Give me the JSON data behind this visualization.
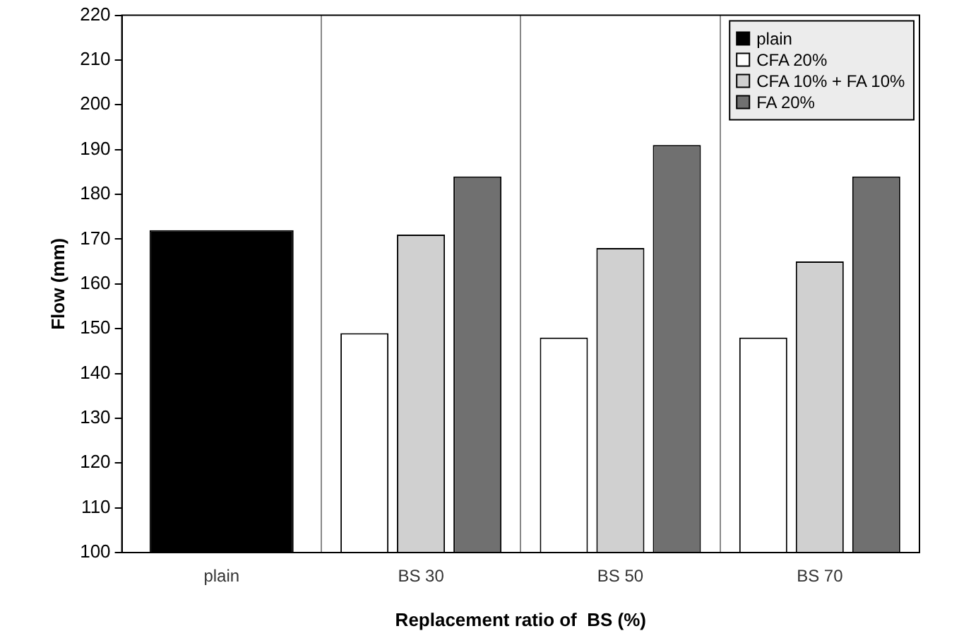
{
  "chart_data": {
    "type": "bar",
    "xlabel": "Replacement ratio of  BS (%)",
    "ylabel": "Flow (mm)",
    "categories": [
      "plain",
      "BS 30",
      "BS 50",
      "BS 70"
    ],
    "series": [
      {
        "name": "plain",
        "color": "#000000",
        "values": [
          172,
          null,
          null,
          null
        ]
      },
      {
        "name": "CFA 20%",
        "color": "#ffffff",
        "values": [
          null,
          149,
          148,
          148
        ]
      },
      {
        "name": "CFA 10% + FA 10%",
        "color": "#d0d0d0",
        "values": [
          null,
          171,
          168,
          165
        ]
      },
      {
        "name": "FA 20%",
        "color": "#707070",
        "values": [
          null,
          184,
          191,
          184
        ]
      }
    ],
    "ylim": [
      100,
      220
    ],
    "yticks": [
      100,
      110,
      120,
      130,
      140,
      150,
      160,
      170,
      180,
      190,
      200,
      210,
      220
    ],
    "grid": "x",
    "legend": "top right"
  }
}
